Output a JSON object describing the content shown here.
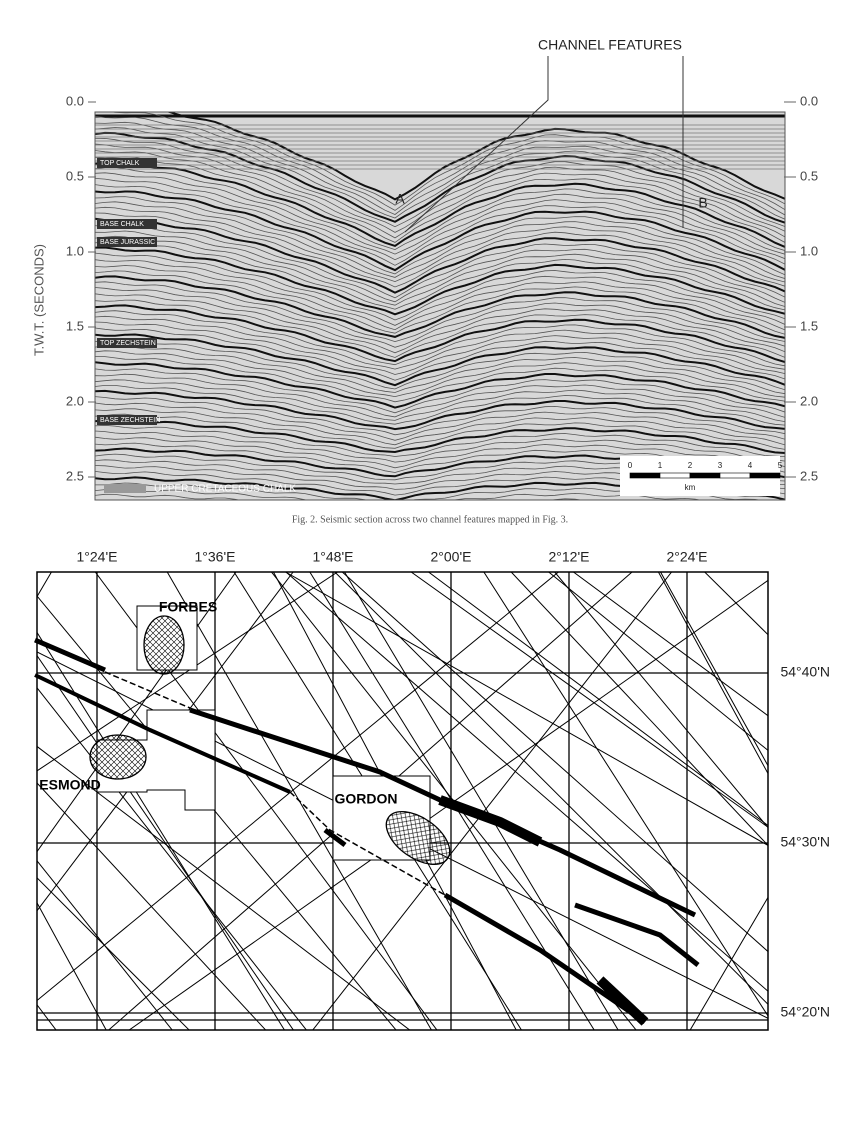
{
  "seismic": {
    "annotation": "CHANNEL FEATURES",
    "y_axis_label": "T.W.T. (SECONDS)",
    "left_ticks": [
      "0.0",
      "0.5",
      "1.0",
      "1.5",
      "2.0",
      "2.5"
    ],
    "right_ticks": [
      "0.0",
      "0.5",
      "1.0",
      "1.5",
      "2.0",
      "2.5"
    ],
    "horizons": [
      "TOP CHALK",
      "BASE CHALK",
      "BASE JURASSIC",
      "TOP ZECHSTEIN",
      "BASE ZECHSTEIN"
    ],
    "markers": [
      "A",
      "B"
    ],
    "legend": "UPPER CRETACEOUS CHALK",
    "scale": {
      "ticks": [
        "0",
        "1",
        "2",
        "3",
        "4",
        "5"
      ],
      "unit": "km"
    }
  },
  "caption": "Fig. 2. Seismic section across two channel features mapped in Fig. 3.",
  "map": {
    "longitudes": [
      "1°24'E",
      "1°36'E",
      "1°48'E",
      "2°00'E",
      "2°12'E",
      "2°24'E"
    ],
    "latitudes": [
      "54°40'N",
      "54°30'N",
      "54°20'N"
    ],
    "fields": [
      "FORBES",
      "ESMOND",
      "GORDON"
    ]
  }
}
